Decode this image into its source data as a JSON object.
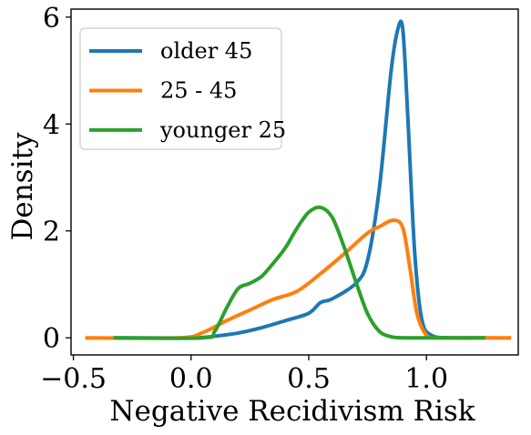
{
  "chart_data": {
    "type": "line",
    "xlabel": "Negative Recidivism Risk",
    "ylabel": "Density",
    "xlim": [
      -0.51,
      1.39
    ],
    "ylim": [
      -0.32,
      6.15
    ],
    "xticks": [
      -0.5,
      0.0,
      0.5,
      1.0
    ],
    "xtick_labels": [
      "−0.5",
      "0.0",
      "0.5",
      "1.0"
    ],
    "yticks": [
      0,
      2,
      4,
      6
    ],
    "ytick_labels": [
      "0",
      "2",
      "4",
      "6"
    ],
    "grid": false,
    "legend_position": "top-left",
    "series": [
      {
        "name": "older 45",
        "color": "#1f77b4",
        "x": [
          -0.33,
          0.0,
          0.1,
          0.2,
          0.3,
          0.4,
          0.5,
          0.55,
          0.6,
          0.7,
          0.75,
          0.8,
          0.85,
          0.88,
          0.9,
          0.92,
          0.95,
          0.98,
          1.02,
          1.1,
          1.25
        ],
        "y": [
          0.0,
          0.0,
          0.03,
          0.09,
          0.19,
          0.32,
          0.46,
          0.66,
          0.73,
          1.02,
          1.45,
          2.8,
          5.0,
          5.8,
          5.75,
          4.2,
          1.6,
          0.35,
          0.05,
          0.0,
          0.0
        ]
      },
      {
        "name": "25 - 45",
        "color": "#ff7f0e",
        "x": [
          -0.45,
          -0.05,
          0.05,
          0.15,
          0.25,
          0.35,
          0.45,
          0.55,
          0.65,
          0.75,
          0.8,
          0.86,
          0.9,
          0.93,
          0.96,
          1.0,
          1.05,
          1.15,
          1.36
        ],
        "y": [
          0.0,
          0.0,
          0.1,
          0.32,
          0.52,
          0.72,
          0.87,
          1.2,
          1.57,
          1.96,
          2.08,
          2.2,
          2.05,
          1.3,
          0.45,
          0.05,
          0.0,
          0.0,
          0.0
        ]
      },
      {
        "name": "younger 25",
        "color": "#2ca02c",
        "x": [
          -0.33,
          0.05,
          0.1,
          0.15,
          0.2,
          0.25,
          0.3,
          0.35,
          0.4,
          0.45,
          0.5,
          0.55,
          0.6,
          0.65,
          0.7,
          0.75,
          0.8,
          0.85,
          0.9,
          1.0,
          1.25
        ],
        "y": [
          0.0,
          0.0,
          0.12,
          0.55,
          0.92,
          1.02,
          1.15,
          1.4,
          1.68,
          2.05,
          2.35,
          2.44,
          2.25,
          1.7,
          1.05,
          0.45,
          0.12,
          0.02,
          0.0,
          0.0,
          0.0
        ]
      }
    ]
  }
}
